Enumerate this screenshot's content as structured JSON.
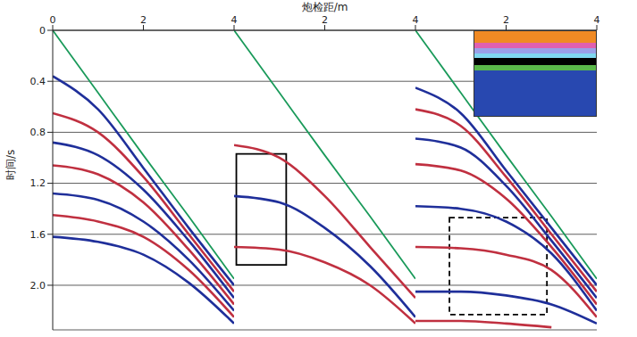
{
  "x_title": "炮检距/m",
  "y_title": "时间/s",
  "chart_data": [
    {
      "type": "line",
      "xlim": [
        0,
        4
      ],
      "xticks": [
        0,
        2,
        4
      ],
      "ylim": [
        0,
        2.35
      ],
      "yticks": [
        0,
        0.4,
        0.8,
        1.2,
        1.6,
        {
          "value": 2,
          "label": "2.0"
        }
      ],
      "grid": true,
      "tick_labels": true,
      "x": [
        0,
        1,
        2,
        3,
        4
      ],
      "series": [
        {
          "color": "#1a9a5a",
          "values": [
            0,
            0.49,
            0.98,
            1.46,
            1.95
          ]
        },
        {
          "color": "#1f2f9a",
          "values": [
            0.36,
            0.62,
            1.08,
            1.55,
            2.0
          ]
        },
        {
          "color": "#c03040",
          "values": [
            0.65,
            0.8,
            1.15,
            1.6,
            2.05
          ]
        },
        {
          "color": "#1f2f9a",
          "values": [
            0.88,
            0.98,
            1.25,
            1.65,
            2.1
          ]
        },
        {
          "color": "#c03040",
          "values": [
            1.06,
            1.13,
            1.35,
            1.72,
            2.15
          ]
        },
        {
          "color": "#1f2f9a",
          "values": [
            1.28,
            1.33,
            1.5,
            1.8,
            2.2
          ]
        },
        {
          "color": "#c03040",
          "values": [
            1.45,
            1.5,
            1.62,
            1.88,
            2.25
          ]
        },
        {
          "color": "#1f2f9a",
          "values": [
            1.62,
            1.66,
            1.76,
            1.98,
            2.3
          ]
        }
      ],
      "boxes": []
    },
    {
      "type": "line",
      "xlim": [
        0,
        4
      ],
      "xticks": [
        2,
        4
      ],
      "ylim": [
        0,
        2.35
      ],
      "yticks": [
        0,
        0.4,
        0.8,
        1.2,
        1.6,
        {
          "value": 2,
          "label": "2.0"
        }
      ],
      "grid": true,
      "tick_labels": "x",
      "x": [
        0,
        1,
        2,
        3,
        4
      ],
      "series": [
        {
          "color": "#1a9a5a",
          "values": [
            0,
            0.49,
            0.98,
            1.46,
            1.95
          ]
        },
        {
          "color": "#c03040",
          "values": [
            0.9,
            1.0,
            1.3,
            1.7,
            2.1
          ]
        },
        {
          "color": "#1f2f9a",
          "values": [
            1.3,
            1.35,
            1.55,
            1.85,
            2.25
          ]
        },
        {
          "color": "#c03040",
          "values": [
            1.7,
            1.72,
            1.82,
            2.0,
            2.3
          ]
        }
      ],
      "boxes": [
        {
          "x": [
            0.05,
            1.15
          ],
          "y": [
            0.97,
            1.84
          ],
          "line_style": "solid"
        }
      ]
    },
    {
      "type": "line",
      "xlim": [
        0,
        4
      ],
      "xticks": [
        2,
        4
      ],
      "ylim": [
        0,
        2.35
      ],
      "yticks": [
        0,
        0.4,
        0.8,
        1.2,
        1.6,
        {
          "value": 2,
          "label": "2.0"
        }
      ],
      "grid": true,
      "tick_labels": "x",
      "x": [
        0,
        1,
        2,
        3,
        4
      ],
      "series": [
        {
          "color": "#1a9a5a",
          "values": [
            0,
            0.49,
            0.98,
            1.46,
            1.95
          ]
        },
        {
          "color": "#1f2f9a",
          "values": [
            0.45,
            0.65,
            1.1,
            1.55,
            2.0
          ]
        },
        {
          "color": "#c03040",
          "values": [
            0.62,
            0.75,
            1.15,
            1.6,
            2.05
          ]
        },
        {
          "color": "#1f2f9a",
          "values": [
            0.85,
            0.92,
            1.22,
            1.65,
            2.1
          ]
        },
        {
          "color": "#c03040",
          "values": [
            1.05,
            1.1,
            1.32,
            1.7,
            2.15
          ]
        },
        {
          "color": "#1f2f9a",
          "values": [
            1.38,
            1.4,
            1.5,
            1.75,
            2.2
          ]
        },
        {
          "color": "#c03040",
          "values": [
            1.7,
            1.71,
            1.76,
            1.88,
            2.25
          ]
        },
        {
          "color": "#1f2f9a",
          "values": [
            2.05,
            2.05,
            2.08,
            2.15,
            2.3
          ]
        },
        {
          "color": "#c03040",
          "values": [
            2.28,
            2.28,
            2.3,
            2.33,
            null
          ]
        }
      ],
      "boxes": [
        {
          "x": [
            0.75,
            2.9
          ],
          "y": [
            1.47,
            2.23
          ],
          "line_style": "dashed"
        }
      ]
    }
  ]
}
